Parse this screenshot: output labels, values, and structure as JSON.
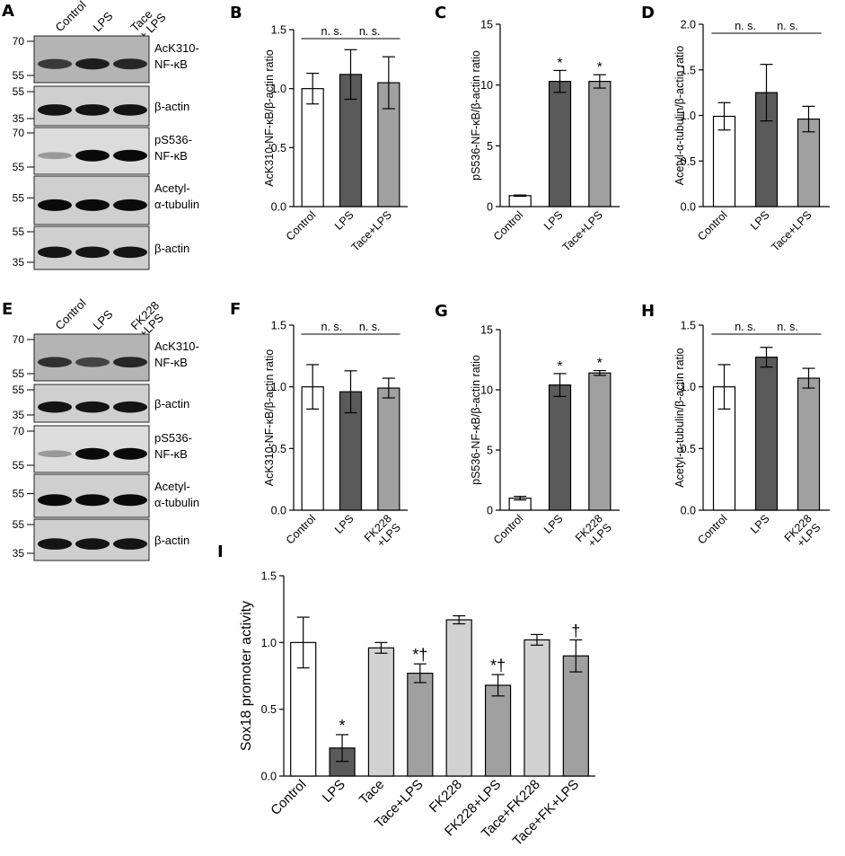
{
  "panel_labels": [
    "A",
    "B",
    "C",
    "D",
    "E",
    "F",
    "G",
    "H",
    "I"
  ],
  "blots": [
    {
      "id": "A",
      "lanes": [
        "Control",
        "LPS",
        "Tace\n+ LPS"
      ],
      "strips": [
        {
          "label": "AcK310-\nNF-κB",
          "markers": [
            "70",
            "55"
          ],
          "intensity": [
            0.75,
            0.9,
            0.85
          ],
          "bg": "#b4b4b4"
        },
        {
          "label": "β-actin",
          "markers": [
            "55",
            "35"
          ],
          "intensity": [
            0.95,
            0.95,
            0.95
          ],
          "bg": "#cfcfcf"
        },
        {
          "label": "pS536-\nNF-κB",
          "markers": [
            "70",
            "55"
          ],
          "intensity": [
            0.25,
            1.0,
            1.0
          ],
          "bg": "#dcdcdc"
        },
        {
          "label": "Acetyl-\nα-tubulin",
          "markers": [
            "55"
          ],
          "intensity": [
            1.0,
            1.0,
            1.0
          ],
          "bg": "#cfcfcf"
        },
        {
          "label": "β-actin",
          "markers": [
            "55",
            "35"
          ],
          "intensity": [
            0.95,
            0.95,
            0.95
          ],
          "bg": "#cfcfcf"
        }
      ]
    },
    {
      "id": "E",
      "lanes": [
        "Control",
        "LPS",
        "FK228\n+LPS"
      ],
      "strips": [
        {
          "label": "AcK310-\nNF-κB",
          "markers": [
            "70",
            "55"
          ],
          "intensity": [
            0.8,
            0.7,
            0.85
          ],
          "bg": "#b4b4b4"
        },
        {
          "label": "β-actin",
          "markers": [
            "55",
            "35"
          ],
          "intensity": [
            0.95,
            0.95,
            0.95
          ],
          "bg": "#cfcfcf"
        },
        {
          "label": "pS536-\nNF-κB",
          "markers": [
            "70",
            "55"
          ],
          "intensity": [
            0.25,
            1.0,
            1.0
          ],
          "bg": "#dcdcdc"
        },
        {
          "label": "Acetyl-\nα-tubulin",
          "markers": [
            "55"
          ],
          "intensity": [
            1.0,
            1.0,
            1.0
          ],
          "bg": "#cfcfcf"
        },
        {
          "label": "β-actin",
          "markers": [
            "55",
            "35"
          ],
          "intensity": [
            0.95,
            0.95,
            0.95
          ],
          "bg": "#cfcfcf"
        }
      ]
    }
  ],
  "colors": {
    "control": "#ffffff",
    "lps": "#5a5a5a",
    "treat": "#a0a0a0",
    "single": "#d2d2d2"
  },
  "chart_data": [
    {
      "id": "B",
      "type": "bar",
      "ylabel": "AcK310-NF-κB/β-actin ratio",
      "ylim": [
        0,
        1.5
      ],
      "yticks": [
        "0.0",
        "0.5",
        "1.0",
        "1.5"
      ],
      "categories": [
        "Control",
        "LPS",
        "Tace+LPS"
      ],
      "values": [
        1.0,
        1.12,
        1.05
      ],
      "errors": [
        0.13,
        0.21,
        0.22
      ],
      "colors": [
        "control",
        "lps",
        "treat"
      ],
      "marks": [
        "",
        "",
        ""
      ],
      "brackets": [
        {
          "from": 0,
          "to": 1,
          "text": "n. s."
        },
        {
          "from": 1,
          "to": 2,
          "text": "n. s."
        }
      ]
    },
    {
      "id": "C",
      "type": "bar",
      "ylabel": "pS536-NF-κB/β-actin ratio",
      "ylim": [
        0,
        15
      ],
      "yticks": [
        "0",
        "5",
        "10",
        "15"
      ],
      "categories": [
        "Control",
        "LPS",
        "Tace+LPS"
      ],
      "values": [
        0.9,
        10.3,
        10.3
      ],
      "errors": [
        0.05,
        0.9,
        0.55
      ],
      "colors": [
        "control",
        "lps",
        "treat"
      ],
      "marks": [
        "",
        "*",
        "*"
      ],
      "brackets": []
    },
    {
      "id": "D",
      "type": "bar",
      "ylabel": "Acetyl-α-tubulin/β-actin ratio",
      "ylim": [
        0,
        2.0
      ],
      "yticks": [
        "0.0",
        "0.5",
        "1.0",
        "1.5",
        "2.0"
      ],
      "categories": [
        "Control",
        "LPS",
        "Tace+LPS"
      ],
      "values": [
        0.99,
        1.25,
        0.96
      ],
      "errors": [
        0.15,
        0.31,
        0.14
      ],
      "colors": [
        "control",
        "lps",
        "treat"
      ],
      "marks": [
        "",
        "",
        ""
      ],
      "brackets": [
        {
          "from": 0,
          "to": 1,
          "text": "n. s."
        },
        {
          "from": 1,
          "to": 2,
          "text": "n. s."
        }
      ]
    },
    {
      "id": "F",
      "type": "bar",
      "ylabel": "AcK310-NF-κB/β-actin ratio",
      "ylim": [
        0,
        1.5
      ],
      "yticks": [
        "0.0",
        "0.5",
        "1.0",
        "1.5"
      ],
      "categories": [
        "Control",
        "LPS",
        "FK228\n+LPS"
      ],
      "values": [
        1.0,
        0.96,
        0.99
      ],
      "errors": [
        0.18,
        0.17,
        0.08
      ],
      "colors": [
        "control",
        "lps",
        "treat"
      ],
      "marks": [
        "",
        "",
        ""
      ],
      "brackets": [
        {
          "from": 0,
          "to": 1,
          "text": "n. s."
        },
        {
          "from": 1,
          "to": 2,
          "text": "n. s."
        }
      ]
    },
    {
      "id": "G",
      "type": "bar",
      "ylabel": "pS536-NF-κB/β-actin ratio",
      "ylim": [
        0,
        15
      ],
      "yticks": [
        "0",
        "5",
        "10",
        "15"
      ],
      "categories": [
        "Control",
        "LPS",
        "FK228\n+LPS"
      ],
      "values": [
        1.0,
        10.4,
        11.4
      ],
      "errors": [
        0.15,
        0.95,
        0.2
      ],
      "colors": [
        "control",
        "lps",
        "treat"
      ],
      "marks": [
        "",
        "*",
        "*"
      ],
      "brackets": []
    },
    {
      "id": "H",
      "type": "bar",
      "ylabel": "Acetyl-α-tubulin/β-actin ratio",
      "ylim": [
        0,
        1.5
      ],
      "yticks": [
        "0.0",
        "0.5",
        "1.0",
        "1.5"
      ],
      "categories": [
        "Control",
        "LPS",
        "FK228\n+LPS"
      ],
      "values": [
        1.0,
        1.24,
        1.07
      ],
      "errors": [
        0.18,
        0.08,
        0.08
      ],
      "colors": [
        "control",
        "lps",
        "treat"
      ],
      "marks": [
        "",
        "",
        ""
      ],
      "brackets": [
        {
          "from": 0,
          "to": 1,
          "text": "n. s."
        },
        {
          "from": 1,
          "to": 2,
          "text": "n. s."
        }
      ]
    },
    {
      "id": "I",
      "type": "bar",
      "ylabel": "Sox18 promoter activity",
      "ylim": [
        0,
        1.5
      ],
      "yticks": [
        "0.0",
        "0.5",
        "1.0",
        "1.5"
      ],
      "categories": [
        "Control",
        "LPS",
        "Tace",
        "Tace+LPS",
        "FK228",
        "FK228+LPS",
        "Tace+FK228",
        "Tace+FK+LPS"
      ],
      "values": [
        1.0,
        0.21,
        0.96,
        0.77,
        1.17,
        0.68,
        1.02,
        0.9
      ],
      "errors": [
        0.19,
        0.1,
        0.04,
        0.07,
        0.03,
        0.08,
        0.04,
        0.12
      ],
      "colors": [
        "control",
        "lps",
        "single",
        "treat",
        "single",
        "treat",
        "single",
        "treat"
      ],
      "marks": [
        "",
        "*",
        "",
        "*†",
        "",
        "*†",
        "",
        "†"
      ],
      "brackets": []
    }
  ]
}
